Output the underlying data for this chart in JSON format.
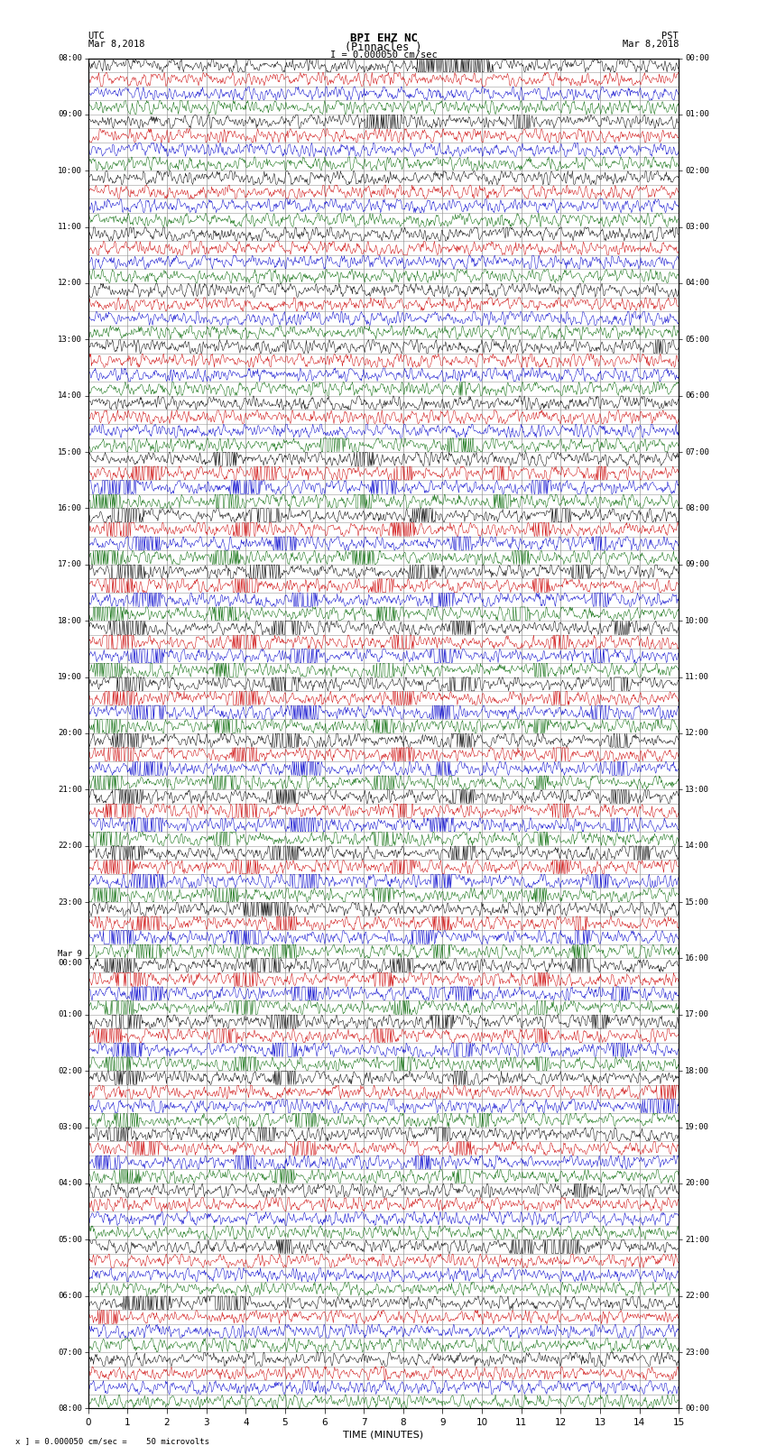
{
  "title_line1": "BPI EHZ NC",
  "title_line2": "(Pinnacles )",
  "scale_text": "I = 0.000050 cm/sec",
  "left_label": "UTC",
  "left_date": "Mar 8,2018",
  "right_label": "PST",
  "right_date": "Mar 8,2018",
  "xlabel": "TIME (MINUTES)",
  "footnote": "x ] = 0.000050 cm/sec =    50 microvolts",
  "x_min": 0,
  "x_max": 15,
  "bg_color": "#ffffff",
  "grid_color": "#999999",
  "trace_colors_cycle": [
    "#000000",
    "#cc0000",
    "#0000cc",
    "#006600"
  ],
  "base_noise": 0.006,
  "row_scale": 0.42
}
